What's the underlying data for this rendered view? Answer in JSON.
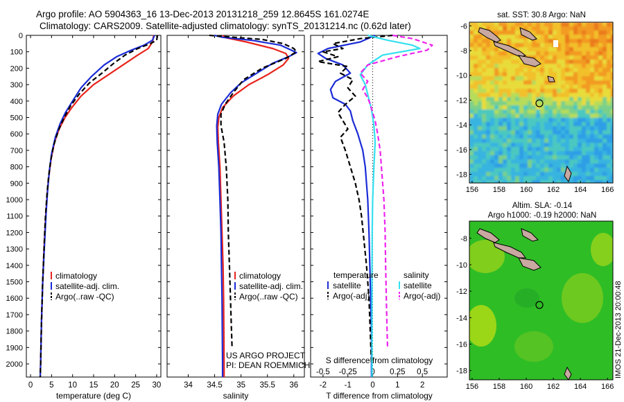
{
  "header": {
    "title_line1": "Argo profile: AO 5904363_16 13-Dec-2013 20131218_259 12.8645S 161.0274E",
    "title_line2": "Climatology: CARS2009. Satellite-adjusted climatology: synTS_20131214.nc (0.62d later)"
  },
  "colors": {
    "climatology": "#e8231c",
    "satellite": "#1a2bd6",
    "argo": "#000000",
    "sat_salinity": "#33e0f0",
    "argo_salinity": "#ee22ee"
  },
  "y_axis": {
    "ticks": [
      0,
      100,
      200,
      300,
      400,
      500,
      600,
      700,
      800,
      900,
      1000,
      1100,
      1200,
      1300,
      1400,
      1500,
      1600,
      1700,
      1800,
      1900,
      2000
    ]
  },
  "chart_data": [
    {
      "type": "line",
      "name": "temperature-panel",
      "xlabel": "temperature (deg C)",
      "xlim": [
        -1,
        31
      ],
      "ylim": [
        2080,
        0
      ],
      "xticks": [
        0,
        5,
        10,
        15,
        20,
        25,
        30
      ],
      "legend": {
        "placement": "bottom-center",
        "entries": [
          "climatology",
          "satellite-adj. clim.",
          "Argo(..raw -QC)"
        ]
      },
      "series": [
        {
          "name": "climatology",
          "color": "#e8231c",
          "dash": "",
          "points": [
            [
              29.3,
              0
            ],
            [
              29.0,
              40
            ],
            [
              28,
              80
            ],
            [
              25.5,
              120
            ],
            [
              22,
              180
            ],
            [
              18.5,
              240
            ],
            [
              15,
              300
            ],
            [
              12,
              370
            ],
            [
              9.8,
              440
            ],
            [
              8.2,
              500
            ],
            [
              6.8,
              570
            ],
            [
              5.7,
              650
            ],
            [
              4.9,
              750
            ],
            [
              4.4,
              850
            ],
            [
              4.0,
              950
            ],
            [
              3.6,
              1100
            ],
            [
              3.2,
              1300
            ],
            [
              2.9,
              1500
            ],
            [
              2.6,
              1750
            ],
            [
              2.4,
              2000
            ],
            [
              2.3,
              2080
            ]
          ]
        },
        {
          "name": "satellite-adj. clim.",
          "color": "#1a2bd6",
          "dash": "",
          "points": [
            [
              29.5,
              0
            ],
            [
              29.0,
              30
            ],
            [
              27,
              60
            ],
            [
              24,
              90
            ],
            [
              20.5,
              130
            ],
            [
              17.5,
              180
            ],
            [
              14.5,
              250
            ],
            [
              12.0,
              320
            ],
            [
              10.0,
              400
            ],
            [
              8.3,
              470
            ],
            [
              7.0,
              540
            ],
            [
              5.9,
              620
            ],
            [
              5.0,
              720
            ],
            [
              4.5,
              820
            ],
            [
              4.1,
              930
            ],
            [
              3.7,
              1080
            ],
            [
              3.3,
              1280
            ],
            [
              2.9,
              1500
            ],
            [
              2.6,
              1750
            ],
            [
              2.4,
              2000
            ],
            [
              2.3,
              2080
            ]
          ]
        },
        {
          "name": "Argo(..raw -QC)",
          "color": "#000000",
          "dash": "7,4",
          "points": [
            [
              30.2,
              0
            ],
            [
              30.0,
              30
            ],
            [
              28.5,
              50
            ],
            [
              25.5,
              80
            ],
            [
              22.5,
              120
            ],
            [
              19.8,
              170
            ],
            [
              17,
              230
            ],
            [
              14.0,
              290
            ],
            [
              11.5,
              360
            ],
            [
              9.5,
              430
            ],
            [
              8.0,
              500
            ],
            [
              6.6,
              580
            ],
            [
              5.5,
              670
            ],
            [
              4.8,
              760
            ],
            [
              4.3,
              860
            ],
            [
              3.9,
              970
            ],
            [
              3.5,
              1120
            ],
            [
              3.2,
              1300
            ],
            [
              2.9,
              1500
            ],
            [
              2.6,
              1750
            ],
            [
              2.4,
              2000
            ],
            [
              2.3,
              2080
            ]
          ]
        }
      ]
    },
    {
      "type": "line",
      "name": "salinity-panel",
      "xlabel": "salinity",
      "xlim": [
        33.6,
        36.2
      ],
      "ylim": [
        2080,
        0
      ],
      "xticks": [
        34,
        34.5,
        35,
        35.5,
        36
      ],
      "legend": {
        "placement": "bottom-center",
        "entries": [
          "climatology",
          "satellite-adj. clim.",
          "Argo(..raw -QC)"
        ]
      },
      "annotation": {
        "line1": "US ARGO PROJECT",
        "line2": "PI: DEAN ROEMMICH"
      },
      "series": [
        {
          "name": "climatology",
          "color": "#e8231c",
          "dash": "",
          "points": [
            [
              34.65,
              0
            ],
            [
              34.72,
              15
            ],
            [
              35.1,
              40
            ],
            [
              35.6,
              80
            ],
            [
              35.85,
              110
            ],
            [
              35.9,
              140
            ],
            [
              35.8,
              180
            ],
            [
              35.5,
              240
            ],
            [
              35.15,
              300
            ],
            [
              34.85,
              370
            ],
            [
              34.65,
              440
            ],
            [
              34.58,
              500
            ],
            [
              34.56,
              560
            ],
            [
              34.57,
              650
            ],
            [
              34.6,
              800
            ],
            [
              34.62,
              1000
            ],
            [
              34.64,
              1200
            ],
            [
              34.66,
              1400
            ],
            [
              34.67,
              1600
            ],
            [
              34.68,
              2000
            ],
            [
              34.68,
              2080
            ]
          ]
        },
        {
          "name": "satellite-adj. clim.",
          "color": "#1a2bd6",
          "dash": "",
          "points": [
            [
              34.5,
              0
            ],
            [
              34.65,
              12
            ],
            [
              35.2,
              30
            ],
            [
              35.75,
              60
            ],
            [
              35.95,
              90
            ],
            [
              36.05,
              105
            ],
            [
              35.9,
              130
            ],
            [
              35.6,
              170
            ],
            [
              35.3,
              230
            ],
            [
              35.0,
              290
            ],
            [
              34.8,
              350
            ],
            [
              34.63,
              420
            ],
            [
              34.56,
              480
            ],
            [
              34.54,
              550
            ],
            [
              34.55,
              650
            ],
            [
              34.58,
              800
            ],
            [
              34.6,
              1000
            ],
            [
              34.62,
              1200
            ],
            [
              34.63,
              1400
            ],
            [
              34.64,
              1600
            ],
            [
              34.65,
              2000
            ],
            [
              34.65,
              2080
            ]
          ]
        },
        {
          "name": "Argo(..raw -QC)",
          "color": "#000000",
          "dash": "7,4",
          "points": [
            [
              34.4,
              0
            ],
            [
              34.8,
              10
            ],
            [
              35.4,
              25
            ],
            [
              35.8,
              50
            ],
            [
              36.0,
              80
            ],
            [
              36.05,
              100
            ],
            [
              35.85,
              140
            ],
            [
              35.4,
              200
            ],
            [
              35.05,
              270
            ],
            [
              34.85,
              350
            ],
            [
              34.7,
              420
            ],
            [
              34.62,
              480
            ],
            [
              34.62,
              550
            ],
            [
              34.68,
              650
            ],
            [
              34.72,
              800
            ],
            [
              34.75,
              1000
            ],
            [
              34.76,
              1200
            ],
            [
              34.78,
              1400
            ],
            [
              34.8,
              1600
            ],
            [
              34.82,
              1800
            ],
            [
              34.83,
              1900
            ]
          ]
        }
      ]
    },
    {
      "type": "line",
      "name": "difference-panel",
      "xlabel": "T difference from climatology",
      "xlabel_top": "S difference from climatology",
      "xlim": [
        -2.5,
        3.0
      ],
      "ylim": [
        2080,
        0
      ],
      "xticks": [
        -2,
        -1,
        0,
        1,
        2
      ],
      "xticks_top": [
        -0.5,
        -0.25,
        0,
        0.25,
        0.5
      ],
      "zero_line": 0,
      "legend": {
        "placement": "bottom-center",
        "temperature_header": "temperature",
        "salinity_header": "salinity",
        "temperature_entries": [
          "satellite",
          "Argo(-adj)"
        ],
        "salinity_entries": [
          "satellite",
          "Argo(-adj)"
        ]
      },
      "series": [
        {
          "name": "T satellite",
          "color": "#1a2bd6",
          "dash": "",
          "points": [
            [
              0.1,
              0
            ],
            [
              -0.5,
              40
            ],
            [
              -1.8,
              80
            ],
            [
              -2.2,
              110
            ],
            [
              -1.9,
              140
            ],
            [
              -1.2,
              180
            ],
            [
              -0.9,
              230
            ],
            [
              -1.5,
              280
            ],
            [
              -1.7,
              330
            ],
            [
              -1.6,
              380
            ],
            [
              -1.1,
              420
            ],
            [
              -0.9,
              460
            ],
            [
              -0.8,
              520
            ],
            [
              -0.6,
              600
            ],
            [
              -0.4,
              700
            ],
            [
              -0.3,
              800
            ],
            [
              -0.25,
              900
            ],
            [
              -0.2,
              1000
            ],
            [
              -0.15,
              1200
            ],
            [
              -0.1,
              1500
            ],
            [
              -0.05,
              1800
            ],
            [
              -0.05,
              2080
            ]
          ]
        },
        {
          "name": "T Argo(-adj)",
          "color": "#000000",
          "dash": "7,4",
          "points": [
            [
              0.8,
              0
            ],
            [
              -0.5,
              20
            ],
            [
              -1.6,
              50
            ],
            [
              -1.2,
              80
            ],
            [
              -2.0,
              100
            ],
            [
              -1.4,
              130
            ],
            [
              -2.2,
              160
            ],
            [
              -1.0,
              190
            ],
            [
              -1.3,
              230
            ],
            [
              -0.8,
              270
            ],
            [
              -1.0,
              320
            ],
            [
              -0.7,
              370
            ],
            [
              -1.1,
              420
            ],
            [
              -1.4,
              470
            ],
            [
              -1.2,
              520
            ],
            [
              -1.0,
              570
            ],
            [
              -1.3,
              620
            ],
            [
              -1.1,
              700
            ],
            [
              -0.9,
              800
            ],
            [
              -0.7,
              900
            ],
            [
              -0.55,
              1000
            ],
            [
              -0.45,
              1100
            ],
            [
              -0.35,
              1250
            ],
            [
              -0.25,
              1400
            ],
            [
              -0.15,
              1600
            ],
            [
              -0.1,
              1800
            ],
            [
              -0.05,
              2000
            ]
          ]
        },
        {
          "name": "S satellite",
          "color": "#33e0f0",
          "dash": "",
          "points": [
            [
              -0.2,
              0
            ],
            [
              0.6,
              30
            ],
            [
              1.6,
              60
            ],
            [
              1.9,
              80
            ],
            [
              0.4,
              120
            ],
            [
              -0.2,
              180
            ],
            [
              -0.5,
              240
            ],
            [
              -0.3,
              300
            ],
            [
              -0.2,
              360
            ],
            [
              -0.05,
              450
            ],
            [
              0.05,
              550
            ],
            [
              0.1,
              650
            ],
            [
              0.05,
              800
            ],
            [
              0.0,
              1000
            ],
            [
              -0.02,
              1200
            ],
            [
              -0.03,
              1500
            ],
            [
              -0.03,
              1800
            ],
            [
              -0.03,
              2080
            ]
          ]
        },
        {
          "name": "S Argo(-adj)",
          "color": "#ee22ee",
          "dash": "7,4",
          "points": [
            [
              0.8,
              0
            ],
            [
              1.6,
              20
            ],
            [
              2.4,
              60
            ],
            [
              2.2,
              90
            ],
            [
              1.0,
              130
            ],
            [
              -0.2,
              180
            ],
            [
              -0.5,
              230
            ],
            [
              -0.2,
              280
            ],
            [
              -0.4,
              330
            ],
            [
              -0.2,
              380
            ],
            [
              -0.1,
              420
            ],
            [
              0.0,
              470
            ],
            [
              0.1,
              520
            ],
            [
              0.2,
              600
            ],
            [
              0.3,
              700
            ],
            [
              0.35,
              800
            ],
            [
              0.4,
              900
            ],
            [
              0.45,
              1000
            ],
            [
              0.5,
              1200
            ],
            [
              0.52,
              1400
            ],
            [
              0.55,
              1600
            ],
            [
              0.58,
              1800
            ],
            [
              0.6,
              1900
            ]
          ]
        }
      ]
    },
    {
      "type": "heatmap",
      "name": "sst-map",
      "title": "sat. SST: 30.8 Argo: NaN",
      "xlim": [
        155.8,
        166.4
      ],
      "ylim": [
        -18.7,
        -5.7
      ],
      "xticks": [
        156,
        158,
        160,
        162,
        164,
        166
      ],
      "yticks": [
        -6,
        -8,
        -10,
        -12,
        -14,
        -16,
        -18
      ],
      "argo_location": [
        161.03,
        -12.86
      ]
    },
    {
      "type": "heatmap",
      "name": "sla-map",
      "title": "Altim. SLA: -0.14",
      "subtitle": "Argo h1000: -0.19 h2000: NaN",
      "xlim": [
        155.8,
        166.4
      ],
      "ylim": [
        -18.7,
        -6.7
      ],
      "xticks": [
        156,
        158,
        160,
        162,
        164,
        166
      ],
      "yticks": [
        -8,
        -10,
        -12,
        -14,
        -16,
        -18
      ],
      "argo_location": [
        161.03,
        -12.86
      ]
    }
  ],
  "footer_stamp": "IMOS 21-Dec-2013 20:00:48"
}
